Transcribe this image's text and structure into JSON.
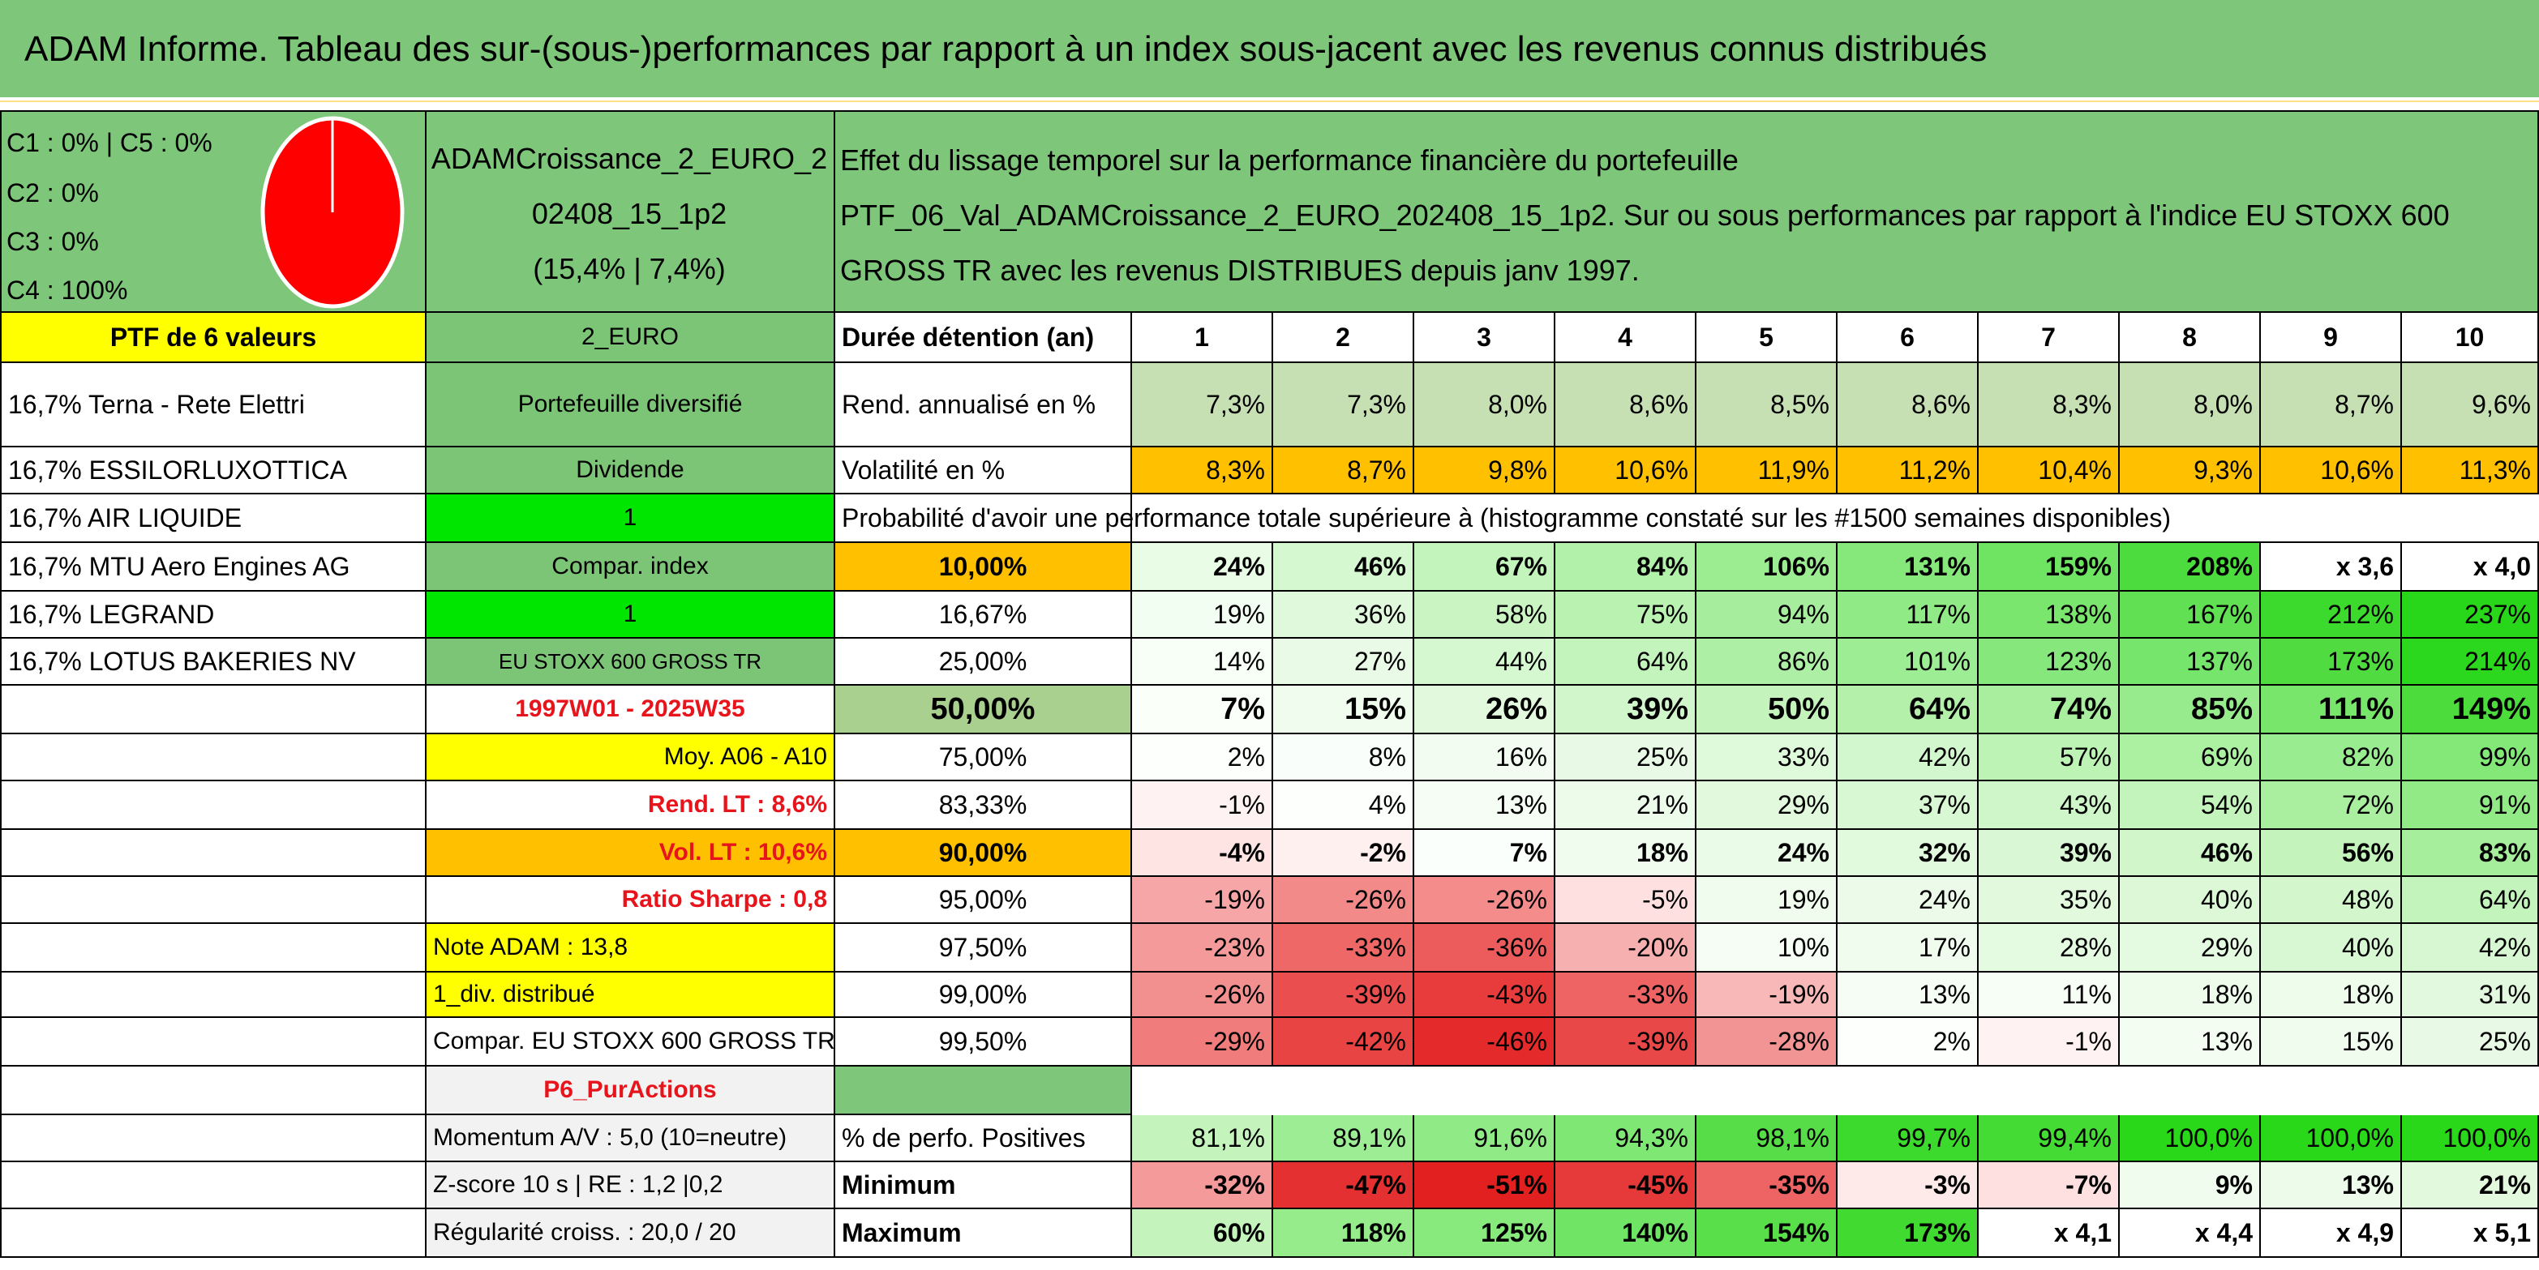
{
  "header": {
    "title": "ADAM Informe. Tableau des sur-(sous-)performances par rapport à un index sous-jacent avec les revenus connus distribués"
  },
  "summary": {
    "composition": [
      "C1 : 0% | C5 : 0%",
      "C2 : 0%",
      "C3 : 0%",
      "C4 : 100%"
    ],
    "portfolio": [
      "ADAMCroissance_2_EURO_2",
      "02408_15_1p2",
      "(15,4% | 7,4%)"
    ],
    "description": [
      "Effet du lissage temporel sur la performance financière du portefeuille",
      "PTF_06_Val_ADAMCroissance_2_EURO_202408_15_1p2. Sur ou sous performances par rapport à l'indice EU STOXX 600",
      "GROSS TR avec les revenus DISTRIBUES depuis janv 1997."
    ]
  },
  "table": {
    "rows": [
      {
        "cells": [
          "PTF de 6 valeurs",
          "2_EURO",
          "Durée détention (an)",
          1,
          2,
          3,
          4,
          5,
          6,
          7,
          8,
          9,
          10
        ],
        "colors": [
          "#ffff00",
          "#7cc576",
          "#ffffff",
          "#ffffff",
          "#ffffff",
          "#ffffff",
          "#ffffff",
          "#ffffff",
          "#ffffff",
          "#ffffff",
          "#ffffff",
          "#ffffff",
          "#ffffff"
        ],
        "a_align": "center",
        "a_bold": true,
        "bold": true
      },
      {
        "cells": [
          "16,7% Terna - Rete Elettri",
          "Portefeuille diversifié",
          "Rend. annualisé en %",
          "7,3%",
          "7,3%",
          "8,0%",
          "8,6%",
          "8,5%",
          "8,6%",
          "8,3%",
          "8,0%",
          "8,7%",
          "9,6%"
        ],
        "colors": [
          "#ffffff",
          "#7cc576",
          "#ffffff",
          "#c6e0b4",
          "#c6e0b4",
          "#c6e0b4",
          "#c6e0b4",
          "#c6e0b4",
          "#c6e0b4",
          "#c6e0b4",
          "#c6e0b4",
          "#c6e0b4",
          "#c6e0b4"
        ]
      },
      {
        "cells": [
          "16,7% ESSILORLUXOTTICA",
          "Dividende",
          "Volatilité en %",
          "8,3%",
          "8,7%",
          "9,8%",
          "10,6%",
          "11,9%",
          "11,2%",
          "10,4%",
          "9,3%",
          "10,6%",
          "11,3%"
        ],
        "colors": [
          "#ffffff",
          "#7cc576",
          "#ffffff",
          "#ffc000",
          "#ffc000",
          "#ffc000",
          "#ffc000",
          "#ffc000",
          "#ffc000",
          "#ffc000",
          "#ffc000",
          "#ffc000",
          "#ffc000"
        ]
      },
      {
        "cells": [
          "16,7% AIR LIQUIDE",
          "1",
          "Probabilité d'avoir une performance totale supérieure à (histogramme constaté sur les #1500 semaines disponibles)",
          null,
          null,
          null,
          null,
          null,
          null,
          null,
          null,
          null,
          null
        ],
        "colors": [
          "#ffffff",
          "#00e600",
          "#ffffff",
          "#ffffff",
          "#ffffff",
          "#ffffff",
          "#ffffff",
          "#ffffff",
          "#ffffff",
          "#ffffff",
          "#ffffff",
          "#ffffff",
          "#ffffff"
        ]
      },
      {
        "cells": [
          "16,7% MTU Aero Engines AG",
          "Compar. index",
          "10,00%",
          "24%",
          "46%",
          "67%",
          "84%",
          "106%",
          "131%",
          "159%",
          "208%",
          "x 3,6",
          "x 4,0"
        ],
        "colors": [
          "#ffffff",
          "#7cc576",
          "#ffc000",
          "#e9fce6",
          "#d6f8d1",
          "#c2f4bb",
          "#b2f1aa",
          "#9cec92",
          "#86e87b",
          "#6fe362",
          "#4cdc3e",
          "#ffffff",
          "#ffffff"
        ],
        "bold": true
      },
      {
        "cells": [
          "16,7% LEGRAND",
          "1",
          "16,67%",
          "19%",
          "36%",
          "58%",
          "75%",
          "94%",
          "117%",
          "138%",
          "167%",
          "212%",
          "237%"
        ],
        "colors": [
          "#ffffff",
          "#00e600",
          "#ffffff",
          "#f3fef2",
          "#e0f9dc",
          "#caf5c3",
          "#b9f2b1",
          "#a6ee9d",
          "#90ea86",
          "#7ae66e",
          "#60e052",
          "#3cda2c",
          "#28d719"
        ]
      },
      {
        "cells": [
          "16,7% LOTUS BAKERIES NV",
          "EU STOXX 600 GROSS TR",
          "25,00%",
          "14%",
          "27%",
          "44%",
          "64%",
          "86%",
          "101%",
          "123%",
          "137%",
          "173%",
          "214%"
        ],
        "colors": [
          "#ffffff",
          "#7cc576",
          "#ffffff",
          "#f7fff6",
          "#e9fbe6",
          "#d6f8d0",
          "#c2f4bb",
          "#aeefa6",
          "#9ced93",
          "#86e87c",
          "#76e56b",
          "#50dc41",
          "#2cd81d"
        ],
        "b_size": "small"
      },
      {
        "cells": [
          null,
          "1997W01 - 2025W35",
          "50,00%",
          "7%",
          "15%",
          "26%",
          "39%",
          "50%",
          "64%",
          "74%",
          "85%",
          "111%",
          "149%"
        ],
        "colors": [
          "#ffffff",
          "#ffffff",
          "#a9d08e",
          "#fafff9",
          "#f0fcee",
          "#e2f9de",
          "#d2f6cc",
          "#c4f4bc",
          "#b4f0aa",
          "#a8ee9e",
          "#98eb8d",
          "#78e66b",
          "#4cdd3d"
        ],
        "bold": true,
        "large": true,
        "b_color": "#e8141b"
      },
      {
        "cells": [
          null,
          "Moy. A06 - A10",
          "75,00%",
          "2%",
          "8%",
          "16%",
          "25%",
          "33%",
          "42%",
          "57%",
          "69%",
          "82%",
          "99%"
        ],
        "colors": [
          "#ffffff",
          "#ffff00",
          "#ffffff",
          "#fdfffd",
          "#fafefa",
          "#f2fcf0",
          "#e8fae5",
          "#dff9db",
          "#d2f6cd",
          "#bef3b6",
          "#acf0a2",
          "#9aec90",
          "#84e879"
        ],
        "b_align": "right"
      },
      {
        "cells": [
          null,
          "Rend. LT : 8,6%",
          "83,33%",
          "-1%",
          "4%",
          "13%",
          "21%",
          "29%",
          "37%",
          "43%",
          "54%",
          "72%",
          "91%"
        ],
        "colors": [
          "#ffffff",
          "#ffffff",
          "#ffffff",
          "#fff2f2",
          "#fdfffd",
          "#f5fdf4",
          "#ecfbea",
          "#e2f9de",
          "#d8f7d3",
          "#cff6c8",
          "#c2f4bb",
          "#aaefa0",
          "#92ea87"
        ],
        "b_align": "right",
        "b_color": "#e8141b"
      },
      {
        "cells": [
          null,
          "Vol. LT : 10,6%",
          "90,00%",
          "-4%",
          "-2%",
          "7%",
          "18%",
          "24%",
          "32%",
          "39%",
          "46%",
          "56%",
          "83%"
        ],
        "colors": [
          "#ffffff",
          "#ffc000",
          "#ffc000",
          "#ffe4e4",
          "#fff0f0",
          "#fbfffb",
          "#f0fcee",
          "#eafbe7",
          "#e1f9dd",
          "#d9f7d4",
          "#d0f6c9",
          "#c4f4bc",
          "#a6ee9c"
        ],
        "bold": true,
        "b_align": "right",
        "b_color": "#e8141b"
      },
      {
        "cells": [
          null,
          "Ratio Sharpe : 0,8",
          "95,00%",
          "-19%",
          "-26%",
          "-26%",
          "-5%",
          "19%",
          "24%",
          "35%",
          "40%",
          "48%",
          "64%"
        ],
        "colors": [
          "#ffffff",
          "#ffffff",
          "#ffffff",
          "#f6a6a6",
          "#f38a8a",
          "#f48c8c",
          "#ffe0e0",
          "#f0fced",
          "#ecfbe9",
          "#e2f9de",
          "#dcf8d7",
          "#d3f6cd",
          "#c2f4bb"
        ],
        "b_align": "right",
        "b_color": "#e8141b"
      },
      {
        "cells": [
          null,
          "Note ADAM : 13,8",
          "97,50%",
          "-23%",
          "-33%",
          "-36%",
          "-20%",
          "10%",
          "17%",
          "28%",
          "29%",
          "40%",
          "42%"
        ],
        "colors": [
          "#ffffff",
          "#ffff00",
          "#ffffff",
          "#f49a9a",
          "#ee6868",
          "#ec5c5c",
          "#f6b0b0",
          "#f5fdf4",
          "#f0fcee",
          "#e4fae1",
          "#e4fae1",
          "#d8f7d3",
          "#d6f7d1"
        ],
        "b_align": "left"
      },
      {
        "cells": [
          null,
          "1_div. distribué",
          "99,00%",
          "-26%",
          "-39%",
          "-43%",
          "-33%",
          "-19%",
          "13%",
          "11%",
          "18%",
          "18%",
          "31%"
        ],
        "colors": [
          "#ffffff",
          "#ffff00",
          "#ffffff",
          "#f29090",
          "#ea4e4e",
          "#e83c3c",
          "#ee6464",
          "#f8b8b8",
          "#f6fdf5",
          "#f7fef6",
          "#eefcec",
          "#eefcec",
          "#e3f9df"
        ],
        "b_align": "left"
      },
      {
        "cells": [
          null,
          "Compar. EU STOXX 600 GROSS TR",
          "99,50%",
          "-29%",
          "-42%",
          "-46%",
          "-39%",
          "-28%",
          "2%",
          "-1%",
          "13%",
          "15%",
          "25%"
        ],
        "colors": [
          "#ffffff",
          "#ffffff",
          "#ffffff",
          "#f07c7c",
          "#e84444",
          "#e42a2a",
          "#e84848",
          "#f29494",
          "#fcfffc",
          "#fff2f2",
          "#f3fdf2",
          "#f0fced",
          "#e8fae5"
        ],
        "b_align": "left"
      },
      {
        "cells": [
          null,
          "P6_PurActions",
          null,
          null,
          null,
          null,
          null,
          null,
          null,
          null,
          null,
          null,
          null
        ],
        "colors": [
          "#ffffff",
          "#f2f2f2",
          "#7dc67a",
          "#ffffff",
          "#ffffff",
          "#ffffff",
          "#ffffff",
          "#ffffff",
          "#ffffff",
          "#ffffff",
          "#ffffff",
          "#ffffff",
          "#ffffff"
        ],
        "b_color": "#e8141b"
      },
      {
        "cells": [
          null,
          "Momentum A/V : 5,0 (10=neutre)",
          "% de perfo. Positives",
          "81,1%",
          "89,1%",
          "91,6%",
          "94,3%",
          "98,1%",
          "99,7%",
          "99,4%",
          "100,0%",
          "100,0%",
          "100,0%"
        ],
        "colors": [
          "#ffffff",
          "#f2f2f2",
          "#ffffff",
          "#c4f4bc",
          "#9ced93",
          "#90ea86",
          "#7fe774",
          "#56dd48",
          "#3cda2c",
          "#44db35",
          "#2ad81a",
          "#2ad81a",
          "#2ad81a"
        ],
        "b_align": "left"
      },
      {
        "cells": [
          null,
          "Z-score 10 s | RE : 1,2 |0,2",
          "Minimum",
          "-32%",
          "-47%",
          "-51%",
          "-45%",
          "-35%",
          "-3%",
          "-7%",
          "9%",
          "13%",
          "21%"
        ],
        "colors": [
          "#ffffff",
          "#f2f2f2",
          "#ffffff",
          "#f49a9a",
          "#e43030",
          "#e22020",
          "#e63a3a",
          "#ee6464",
          "#ffeaea",
          "#ffe0e0",
          "#f0fced",
          "#ecfbea",
          "#e2f9de"
        ],
        "bold": true,
        "b_align": "left"
      },
      {
        "cells": [
          null,
          "Régularité croiss. : 20,0 / 20",
          "Maximum",
          "60%",
          "118%",
          "125%",
          "140%",
          "154%",
          "173%",
          "x 4,1",
          "x 4,4",
          "x 4,9",
          "x 5,1"
        ],
        "colors": [
          "#ffffff",
          "#f2f2f2",
          "#ffffff",
          "#c4f4bc",
          "#96ec8b",
          "#88e97d",
          "#70e464",
          "#58df4a",
          "#40da31",
          "#ffffff",
          "#ffffff",
          "#ffffff",
          "#ffffff"
        ],
        "bold": true,
        "b_align": "left"
      }
    ]
  }
}
